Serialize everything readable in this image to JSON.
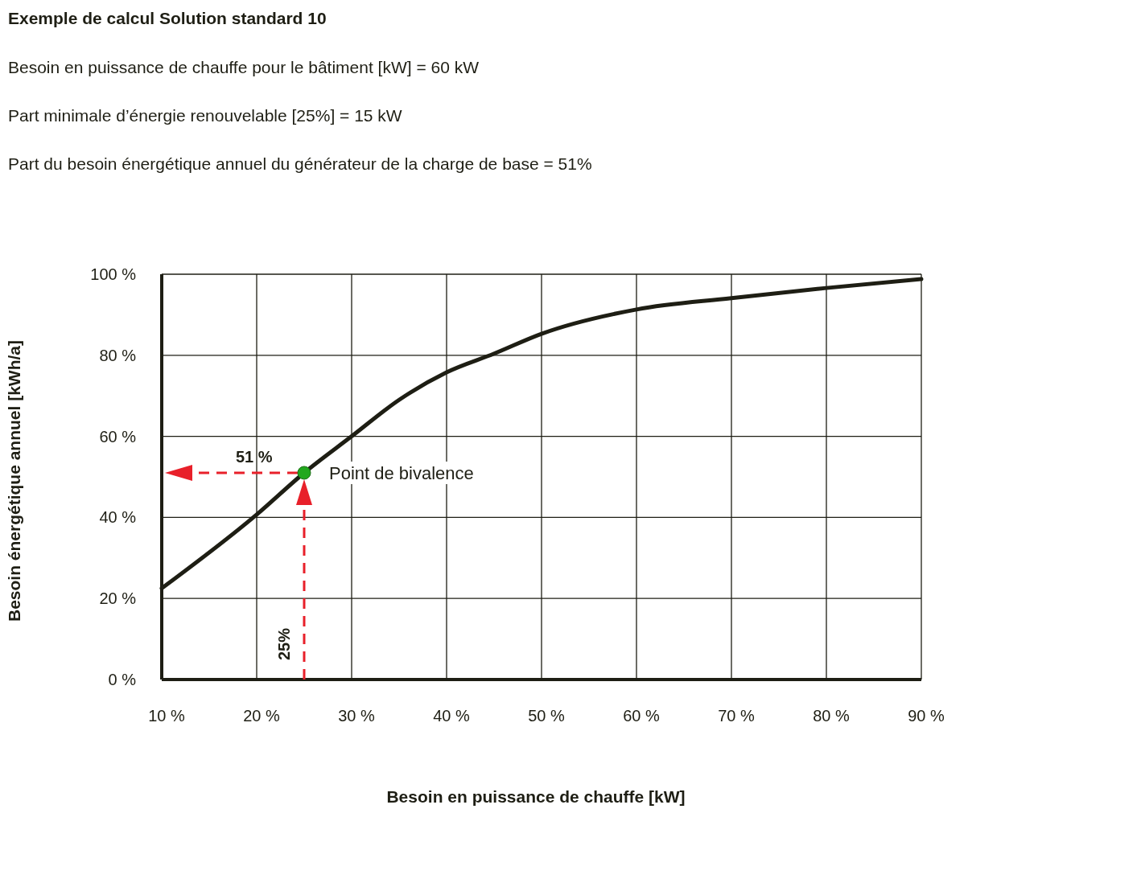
{
  "chart_data": {
    "type": "line",
    "title": "Exemple de calcul Solution standard 10",
    "xlabel": "Besoin en puissance de chauffe [kW]",
    "ylabel": "Besoin énergétique annuel [kWh/a]",
    "annotations": [
      "Besoin en puissance de chauffe pour le bâtiment [kW] = 60 kW",
      "Part minimale d’énergie renouvelable [25%] = 15 kW",
      "Part du besoin énergétique annuel du générateur de la charge de base = 51%",
      {
        "text": "Point de bivalence",
        "x": 25,
        "y": 51
      },
      "51 %",
      "25%"
    ],
    "series": [
      {
        "color": "#1e1e14",
        "x": [
          10,
          20,
          25,
          30,
          35,
          40,
          45,
          50,
          60,
          70,
          80,
          90
        ],
        "values": [
          22.5,
          40.7,
          51,
          60,
          69,
          75.8,
          80.4,
          85.3,
          91.3,
          94.1,
          96.6,
          98.8
        ]
      },
      {
        "type": "scatter",
        "color": "#22a81e",
        "x": [
          25
        ],
        "values": [
          51
        ],
        "marker": "circle"
      }
    ],
    "xlim": [
      10,
      90
    ],
    "ylim": [
      0,
      100
    ],
    "xticks": [
      {
        "value": 10,
        "label": "10 %"
      },
      {
        "value": 20,
        "label": "20 %"
      },
      {
        "value": 30,
        "label": "30 %"
      },
      {
        "value": 40,
        "label": "40 %"
      },
      {
        "value": 50,
        "label": "50 %"
      },
      {
        "value": 60,
        "label": "60 %"
      },
      {
        "value": 70,
        "label": "70 %"
      },
      {
        "value": 80,
        "label": "80 %"
      },
      {
        "value": 90,
        "label": "90 %"
      }
    ],
    "yticks": [
      {
        "value": 0,
        "label": "0 %"
      },
      {
        "value": 20,
        "label": "20 %"
      },
      {
        "value": 40,
        "label": "40 %"
      },
      {
        "value": 60,
        "label": "60 %"
      },
      {
        "value": 80,
        "label": "80 %"
      },
      {
        "value": 100,
        "label": "100 %"
      }
    ],
    "grid": true,
    "marker": "none",
    "line_style": "solid"
  }
}
